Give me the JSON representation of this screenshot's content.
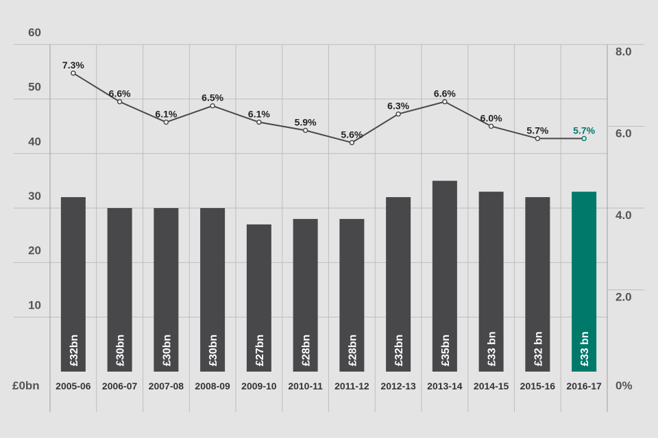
{
  "chart_data": {
    "type": "bar",
    "categories": [
      "2005-06",
      "2006-07",
      "2007-08",
      "2008-09",
      "2009-10",
      "2010-11",
      "2011-12",
      "2012-13",
      "2013-14",
      "2014-15",
      "2015-16",
      "2016-17"
    ],
    "series": [
      {
        "type": "bar",
        "axis": "left",
        "values": [
          32,
          30,
          30,
          30,
          27,
          28,
          28,
          32,
          35,
          33,
          32,
          33
        ],
        "labels": [
          "£32bn",
          "£30bn",
          "£30bn",
          "£30bn",
          "£27bn",
          "£28bn",
          "£28bn",
          "£32bn",
          "£35bn",
          "£33 bn",
          "£32 bn",
          "£33 bn"
        ]
      },
      {
        "type": "line",
        "axis": "right",
        "values": [
          7.3,
          6.6,
          6.1,
          6.5,
          6.1,
          5.9,
          5.6,
          6.3,
          6.6,
          6.0,
          5.7,
          5.7
        ],
        "labels": [
          "7.3%",
          "6.6%",
          "6.1%",
          "6.5%",
          "6.1%",
          "5.9%",
          "5.6%",
          "6.3%",
          "6.6%",
          "6.0%",
          "5.7%",
          "5.7%"
        ]
      }
    ],
    "highlight_index": 11,
    "y_left": {
      "ticks": [
        "£0bn",
        "10",
        "20",
        "30",
        "40",
        "50",
        "60"
      ],
      "lim": [
        0,
        60
      ]
    },
    "y_right": {
      "ticks": [
        "0%",
        "2.0",
        "4.0",
        "6.0",
        "8.0"
      ],
      "lim": [
        0,
        8
      ]
    },
    "grid": true,
    "colors": {
      "bar": "#48474a",
      "highlight": "#00796b",
      "line": "#48474a",
      "grid": "#bdbdbd",
      "background": "#e4e4e4"
    }
  }
}
